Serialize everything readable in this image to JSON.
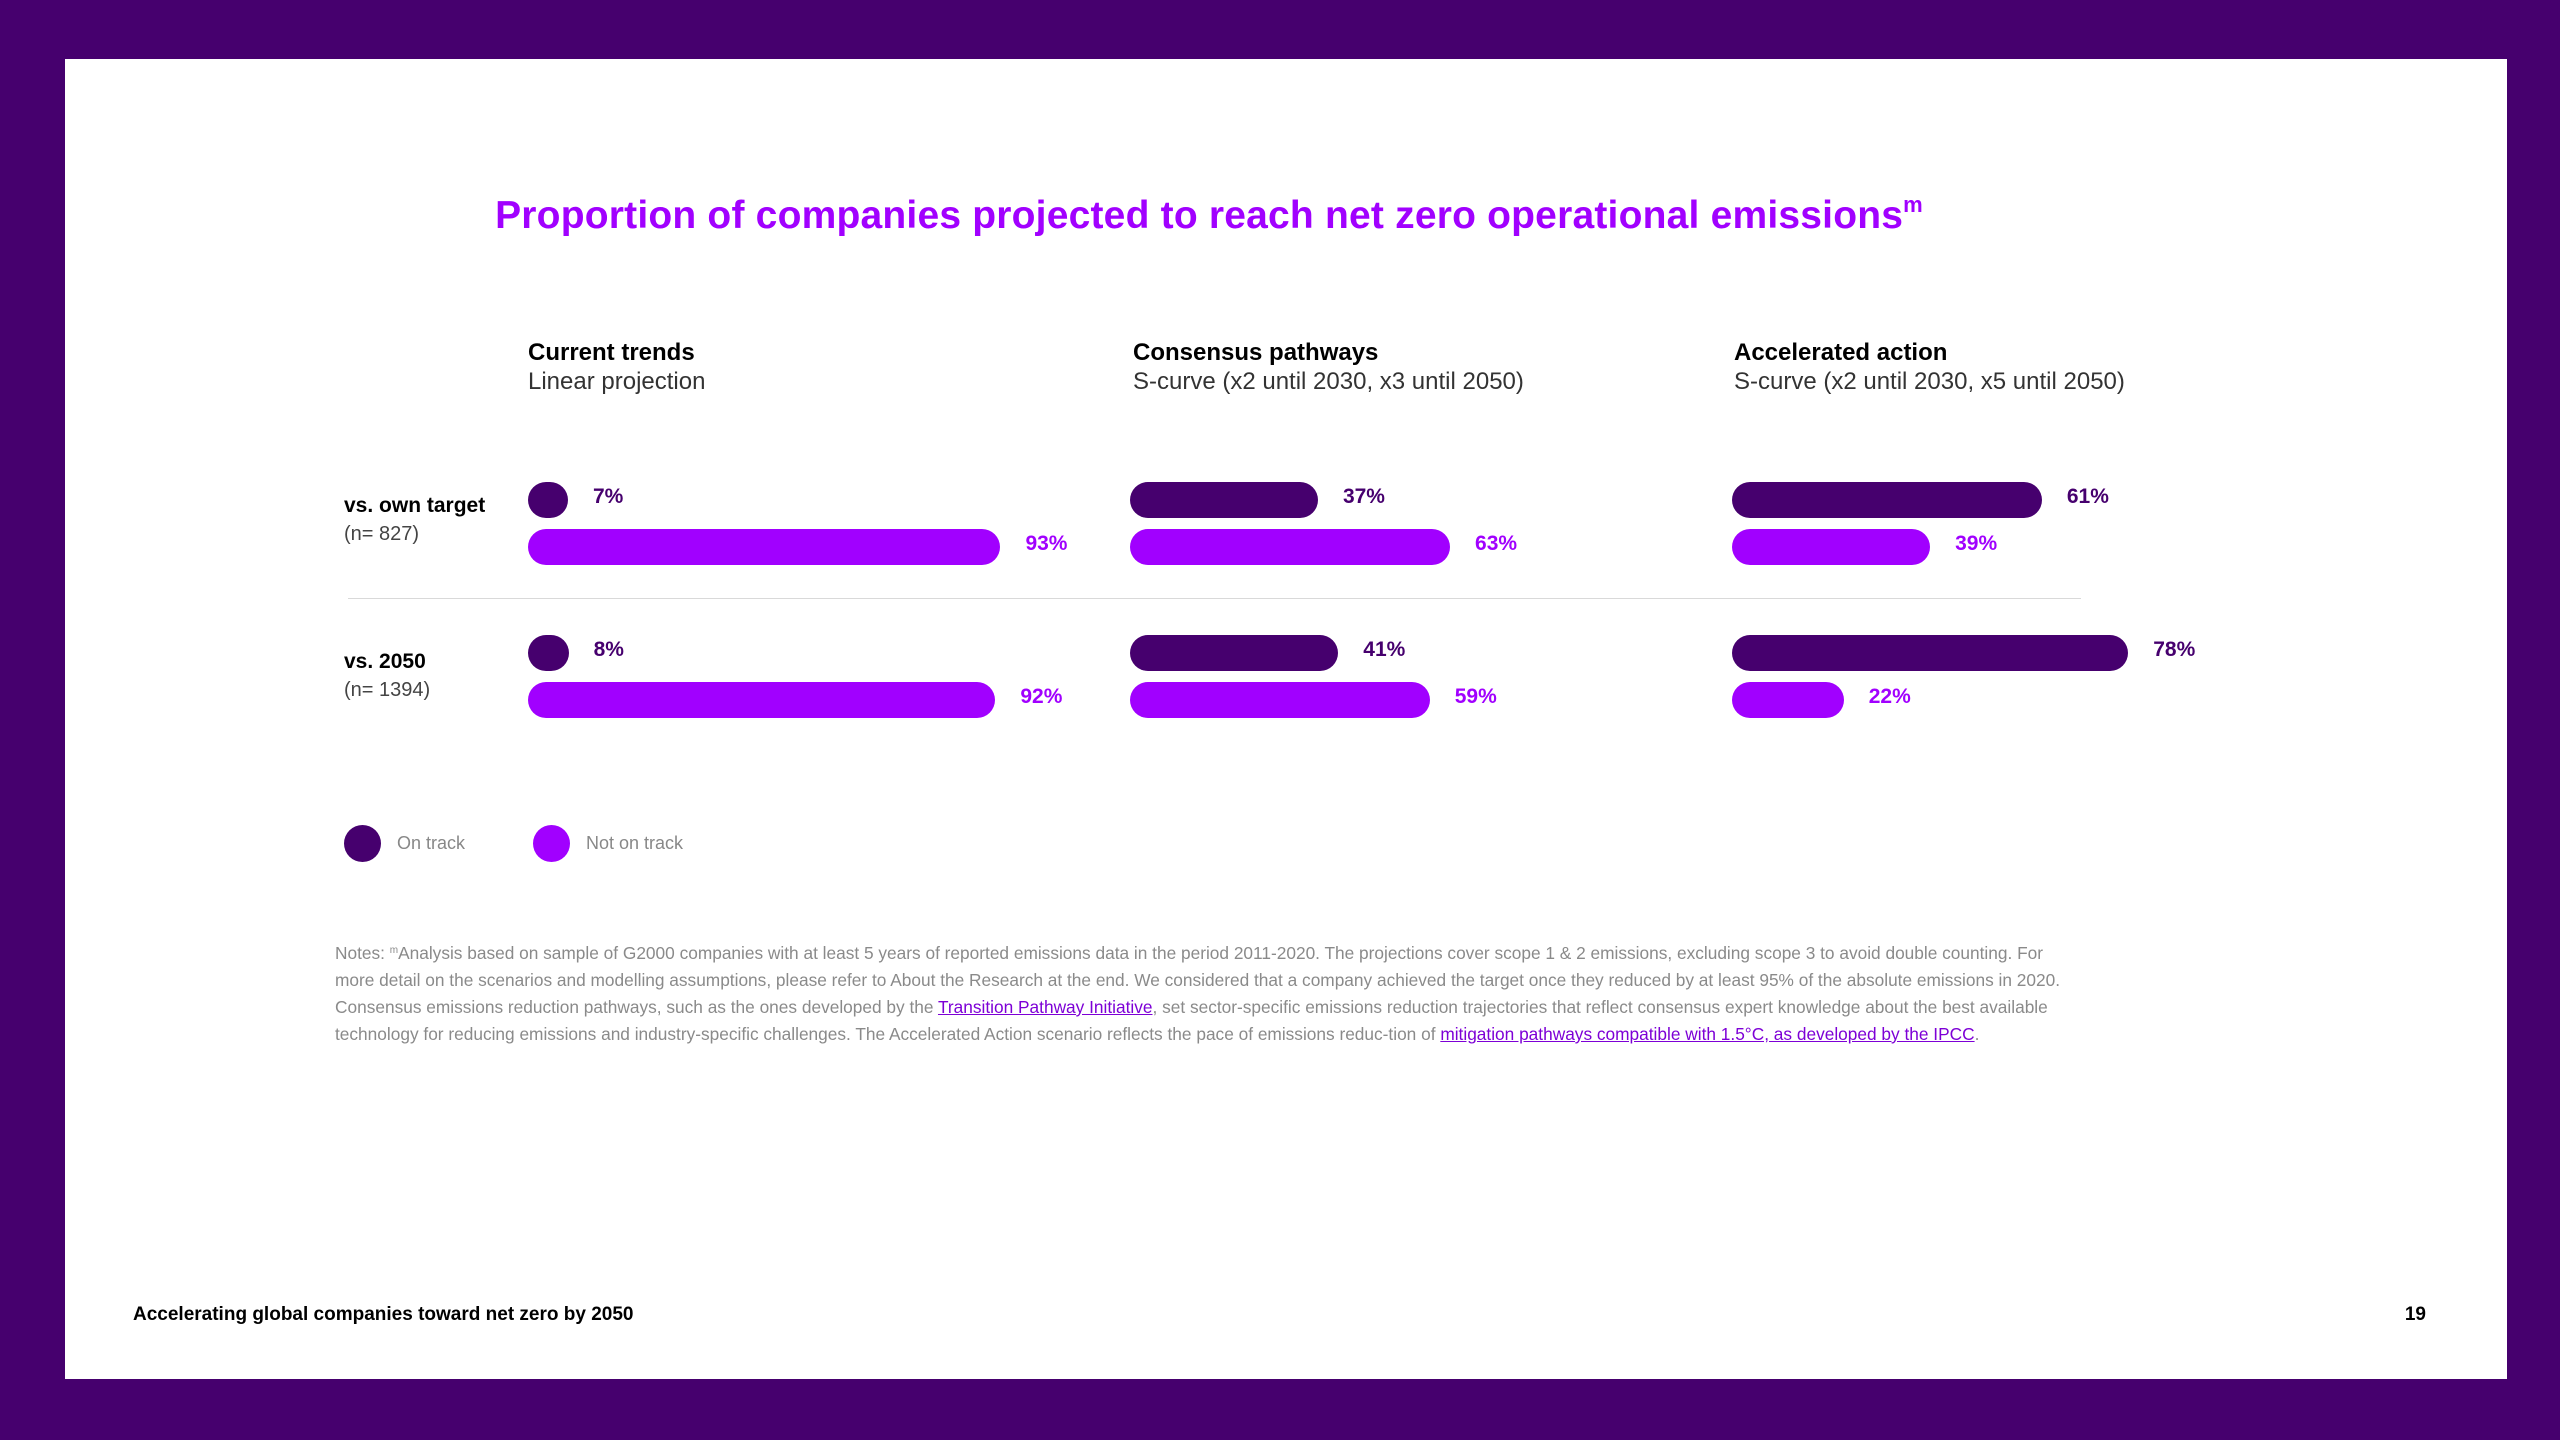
{
  "title": {
    "text": "Proportion of companies projected to reach net zero operational emissions",
    "superscript": "m"
  },
  "colors": {
    "on_track": "#46006e",
    "not_on_track": "#a100ff",
    "frame": "#46006e"
  },
  "chart_data": {
    "type": "bar",
    "orientation": "horizontal",
    "title": "Proportion of companies projected to reach net zero operational emissions",
    "scenarios": [
      {
        "title": "Current trends",
        "subtitle": "Linear projection"
      },
      {
        "title": "Consensus pathways",
        "subtitle": "S-curve (x2 until 2030, x3 until 2050)"
      },
      {
        "title": "Accelerated action",
        "subtitle": "S-curve (x2 until 2030, x5 until 2050)"
      }
    ],
    "rows": [
      {
        "label": "vs. own target",
        "n": "(n= 827)"
      },
      {
        "label": "vs. 2050",
        "n": "(n= 1394)"
      }
    ],
    "series": [
      {
        "name": "On track",
        "values": [
          [
            7,
            8
          ],
          [
            37,
            41
          ],
          [
            61,
            78
          ]
        ],
        "labels": [
          [
            "7%",
            "8%"
          ],
          [
            "37%",
            "41%"
          ],
          [
            "61%",
            "78%"
          ]
        ]
      },
      {
        "name": "Not on track",
        "values": [
          [
            93,
            92
          ],
          [
            63,
            59
          ],
          [
            39,
            22
          ]
        ],
        "labels": [
          [
            "93%",
            "92%"
          ],
          [
            "63%",
            "59%"
          ],
          [
            "39%",
            "22%"
          ]
        ]
      }
    ],
    "unit": "%",
    "legend": [
      "On track",
      "Not on track"
    ],
    "legend_position": "bottom-left"
  },
  "legend": {
    "on_track": "On track",
    "not_on_track": "Not on track"
  },
  "notes": {
    "prefix": "Notes: ",
    "superscript": "m",
    "text1": "Analysis based on sample of G2000 companies with at least 5 years of reported emissions data in the period 2011-2020. The projections cover scope 1 & 2 emissions, excluding scope 3 to avoid double counting. For more detail on the scenarios and modelling assumptions, please refer to About the Research at the end. We considered that a company achieved the target once they reduced by at least 95% of the absolute emissions in 2020. Consensus emissions reduction pathways, such as the ones developed by the ",
    "link1": "Transition Pathway Initiative",
    "text2": ", set sector-specific emissions reduction trajectories that reflect consensus expert knowledge about the best available technology for reducing emissions and industry-specific challenges. The Accelerated Action scenario reflects the pace of emissions reduc-tion of ",
    "link2": "mitigation pathways compatible with 1.5°C, as developed by the IPCC",
    "text3": "."
  },
  "footer": {
    "left": "Accelerating global companies toward net zero by 2050",
    "page": "19"
  }
}
